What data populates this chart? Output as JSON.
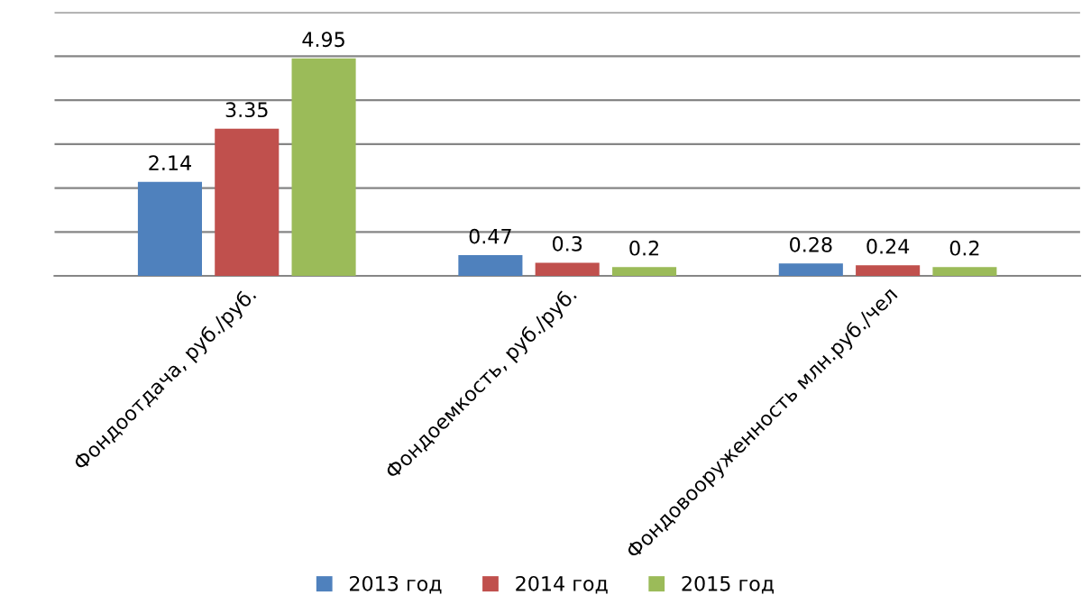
{
  "chart_data": {
    "type": "bar",
    "categories": [
      "Фондоотдача, руб./руб.",
      "Фондоемкость, руб./руб.",
      "Фондовооруженность млн.руб./чел"
    ],
    "series": [
      {
        "name": "2013 год",
        "color": "#4f81bd",
        "values": [
          2.14,
          0.47,
          0.28
        ]
      },
      {
        "name": "2014 год",
        "color": "#c0504d",
        "values": [
          3.35,
          0.3,
          0.24
        ]
      },
      {
        "name": "2015 год",
        "color": "#9bbb59",
        "values": [
          4.95,
          0.2,
          0.2
        ]
      }
    ],
    "ylim": [
      0,
      6
    ],
    "yticks": [
      {
        "value": 0,
        "label": null
      },
      {
        "value": 1,
        "label": null
      },
      {
        "value": 2,
        "label": null
      },
      {
        "value": 3,
        "label": null
      },
      {
        "value": 4,
        "label": null
      },
      {
        "value": 5,
        "label": null
      },
      {
        "value": 6,
        "label": null
      }
    ],
    "tick_labels": "x",
    "grid": "y",
    "legend": "bottom",
    "data_labels": true
  }
}
